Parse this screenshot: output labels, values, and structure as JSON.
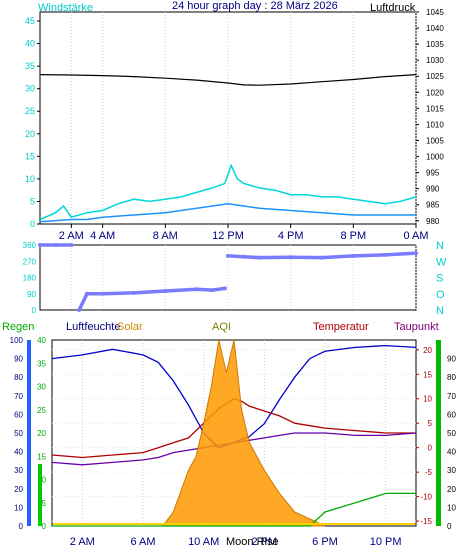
{
  "header": {
    "title": "24 hour graph day : 28 März 2026",
    "left_label": "Windstärke",
    "right_label": "Luftdruck"
  },
  "chart_data": [
    {
      "type": "line",
      "name": "wind-and-pressure",
      "x_ticks": [
        "2 AM",
        "4 AM",
        "8 AM",
        "12 PM",
        "4 PM",
        "8 PM",
        "0 AM"
      ],
      "left_axis": {
        "label": "Windstärke",
        "ticks": [
          0,
          5,
          10,
          15,
          20,
          25,
          30,
          35,
          40,
          45
        ],
        "ylim": [
          0,
          47
        ]
      },
      "right_axis": {
        "label": "Luftdruck",
        "ticks": [
          980,
          985,
          990,
          995,
          1000,
          1005,
          1010,
          1015,
          1020,
          1025,
          1030,
          1035,
          1040,
          1045
        ],
        "ylim": [
          979,
          1045
        ]
      },
      "series": [
        {
          "axis": "right",
          "color": "#000000",
          "points": [
            [
              0,
              1025.5
            ],
            [
              2,
              1025.4
            ],
            [
              4,
              1025.2
            ],
            [
              6,
              1024.9
            ],
            [
              8,
              1024.4
            ],
            [
              10,
              1023.8
            ],
            [
              12,
              1022.9
            ],
            [
              13,
              1022.3
            ],
            [
              14,
              1022.2
            ],
            [
              16,
              1022.6
            ],
            [
              18,
              1023.3
            ],
            [
              20,
              1024.0
            ],
            [
              22,
              1024.9
            ],
            [
              24,
              1025.5
            ]
          ]
        },
        {
          "axis": "left",
          "color": "#00d8d8",
          "points": [
            [
              0,
              1
            ],
            [
              1,
              2.5
            ],
            [
              1.5,
              4
            ],
            [
              2,
              1.5
            ],
            [
              3,
              2.5
            ],
            [
              4,
              3
            ],
            [
              5,
              4.5
            ],
            [
              6,
              5.5
            ],
            [
              7,
              5
            ],
            [
              8,
              5.5
            ],
            [
              9,
              6
            ],
            [
              10,
              7
            ],
            [
              11,
              8
            ],
            [
              11.8,
              9
            ],
            [
              12.2,
              13
            ],
            [
              12.6,
              10
            ],
            [
              13,
              9
            ],
            [
              14,
              8
            ],
            [
              15,
              7.5
            ],
            [
              16,
              6.5
            ],
            [
              17,
              6.5
            ],
            [
              18,
              6
            ],
            [
              19,
              6
            ],
            [
              20,
              5.5
            ],
            [
              21,
              5
            ],
            [
              22,
              4.5
            ],
            [
              23,
              5
            ],
            [
              24,
              6
            ]
          ]
        },
        {
          "axis": "left",
          "color": "#1e90ff",
          "points": [
            [
              0,
              0.5
            ],
            [
              2,
              1
            ],
            [
              3,
              1
            ],
            [
              4,
              1.5
            ],
            [
              6,
              2
            ],
            [
              8,
              2.5
            ],
            [
              10,
              3.5
            ],
            [
              12,
              4.5
            ],
            [
              13,
              4
            ],
            [
              14,
              3.5
            ],
            [
              16,
              3
            ],
            [
              18,
              2.5
            ],
            [
              20,
              2
            ],
            [
              22,
              2
            ],
            [
              24,
              2
            ]
          ]
        }
      ]
    },
    {
      "type": "scatter",
      "name": "wind-direction",
      "left_ticks": [
        "360",
        "270",
        "180",
        "90",
        "0"
      ],
      "right_ticks": [
        "N",
        "W",
        "S",
        "O",
        "N"
      ],
      "ylim": [
        0,
        360
      ],
      "series": [
        {
          "color": "#7b7bff",
          "points": [
            [
              0,
              360
            ],
            [
              1,
              360
            ],
            [
              2,
              360
            ],
            [
              2.5,
              0
            ],
            [
              3,
              90
            ],
            [
              4,
              90
            ],
            [
              6,
              95
            ],
            [
              8,
              105
            ],
            [
              10,
              115
            ],
            [
              11,
              110
            ],
            [
              11.8,
              120
            ],
            [
              12,
              300
            ],
            [
              13,
              295
            ],
            [
              14,
              290
            ],
            [
              16,
              292
            ],
            [
              18,
              290
            ],
            [
              20,
              300
            ],
            [
              22,
              305
            ],
            [
              24,
              315
            ]
          ]
        }
      ]
    },
    {
      "type": "line",
      "name": "humidity-solar-temperature",
      "header_labels": {
        "rain": "Regen",
        "humidity": "Luftfeuchte",
        "solar": "Solar",
        "aqi": "AQI",
        "temperature": "Temperatur",
        "dewpoint": "Taupunkt"
      },
      "x_ticks": [
        "2 AM",
        "6 AM",
        "10 AM",
        "2 PM",
        "6 PM",
        "10 PM"
      ],
      "extra_labels": [
        "Moon Rise"
      ],
      "left_axis_blue": {
        "ticks": [
          0,
          10,
          20,
          30,
          40,
          50,
          60,
          70,
          80,
          90,
          100
        ]
      },
      "left_axis_green": {
        "ticks": [
          0,
          5,
          10,
          15,
          20,
          25,
          30,
          35,
          40
        ]
      },
      "right_axis_temp": {
        "ticks": [
          -15,
          -10,
          -5,
          0,
          5,
          10,
          15,
          20
        ],
        "ylim": [
          -16,
          22
        ]
      },
      "right_axis_green": {
        "ticks": [
          0,
          10,
          20,
          30,
          40,
          50,
          60,
          70,
          80,
          90
        ]
      },
      "series": [
        {
          "name": "Luftfeuchte",
          "color": "#0000cc",
          "points": [
            [
              0,
              90
            ],
            [
              2,
              92
            ],
            [
              4,
              95
            ],
            [
              6,
              92
            ],
            [
              7,
              88
            ],
            [
              8,
              78
            ],
            [
              9,
              65
            ],
            [
              10,
              50
            ],
            [
              11,
              42
            ],
            [
              12,
              45
            ],
            [
              13,
              48
            ],
            [
              14,
              55
            ],
            [
              15,
              68
            ],
            [
              16,
              80
            ],
            [
              17,
              90
            ],
            [
              18,
              94
            ],
            [
              20,
              96
            ],
            [
              22,
              97
            ],
            [
              24,
              96
            ]
          ]
        },
        {
          "name": "Temperatur",
          "color": "#b00000",
          "points": [
            [
              0,
              -1.5
            ],
            [
              2,
              -2
            ],
            [
              4,
              -1.5
            ],
            [
              6,
              -1
            ],
            [
              7,
              0
            ],
            [
              8,
              1
            ],
            [
              9,
              2
            ],
            [
              10,
              5
            ],
            [
              11,
              8
            ],
            [
              12,
              10
            ],
            [
              12.5,
              9.5
            ],
            [
              13,
              8.5
            ],
            [
              14,
              7.5
            ],
            [
              15,
              6.5
            ],
            [
              16,
              5
            ],
            [
              17,
              4.5
            ],
            [
              18,
              4
            ],
            [
              20,
              3.5
            ],
            [
              22,
              3
            ],
            [
              24,
              3
            ]
          ]
        },
        {
          "name": "Taupunkt",
          "color": "#6600aa",
          "points": [
            [
              0,
              -3
            ],
            [
              2,
              -3.5
            ],
            [
              4,
              -3
            ],
            [
              6,
              -2.5
            ],
            [
              7,
              -2
            ],
            [
              8,
              -1
            ],
            [
              9,
              -0.5
            ],
            [
              10,
              0
            ],
            [
              11,
              0.5
            ],
            [
              12,
              1
            ],
            [
              13,
              1.5
            ],
            [
              14,
              2
            ],
            [
              15,
              2.5
            ],
            [
              16,
              3
            ],
            [
              18,
              3
            ],
            [
              20,
              2.5
            ],
            [
              22,
              2.5
            ],
            [
              24,
              3
            ]
          ]
        },
        {
          "name": "Solar",
          "color": "#ff9900",
          "points": [
            [
              7.3,
              0
            ],
            [
              8,
              3
            ],
            [
              9,
              12
            ],
            [
              9.5,
              15
            ],
            [
              10,
              22
            ],
            [
              10.5,
              30
            ],
            [
              11,
              40
            ],
            [
              11.5,
              33
            ],
            [
              12,
              40
            ],
            [
              12.5,
              25
            ],
            [
              13,
              18
            ],
            [
              14,
              12
            ],
            [
              15,
              7
            ],
            [
              16,
              3
            ],
            [
              17,
              1.5
            ],
            [
              18,
              0
            ]
          ]
        },
        {
          "name": "Regen",
          "color": "#00aa00",
          "points": [
            [
              0,
              0
            ],
            [
              17,
              0
            ],
            [
              17.5,
              1.5
            ],
            [
              18,
              3
            ],
            [
              20,
              5
            ],
            [
              21,
              6
            ],
            [
              22,
              7
            ],
            [
              24,
              7
            ]
          ]
        }
      ]
    }
  ]
}
